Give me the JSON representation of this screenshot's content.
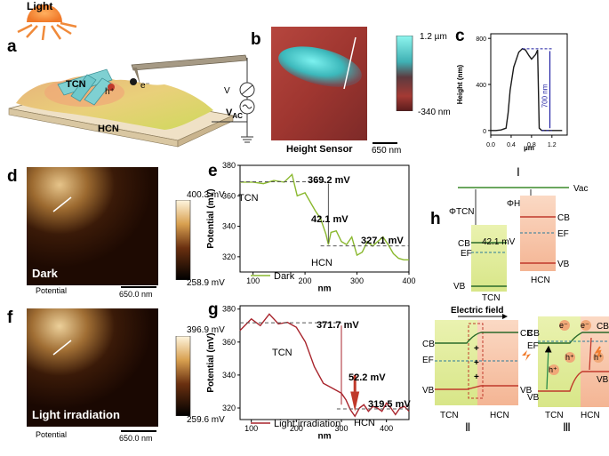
{
  "panels": {
    "a": "a",
    "b": "b",
    "c": "c",
    "d": "d",
    "e": "e",
    "f": "f",
    "g": "g",
    "h": "h"
  },
  "a": {
    "light": "Light",
    "tcn": "TCN",
    "hcn": "HCN",
    "hplus": "h⁺",
    "eminus": "e⁻",
    "vac": "V",
    "vac_sub": "AC"
  },
  "b": {
    "scale_top": "1.2 µm",
    "scale_bottom": "-340 nm",
    "caption": "Height Sensor",
    "scalebar": "650 nm"
  },
  "c": {
    "ylabel": "Height (nm)",
    "xlabel": "µm",
    "annot": "700 nm",
    "colors": {
      "line": "#1a1a1a",
      "annot": "#1f1fa3"
    }
  },
  "d": {
    "top": "400.3 mV",
    "bottom": "258.9 mV",
    "corner": "Dark",
    "caption": "Potential",
    "scalebar": "650.0 nm"
  },
  "f": {
    "top": "396.9 mV",
    "bottom": "259.6 mV",
    "corner": "Light irradiation",
    "caption": "Potential",
    "scalebar": "650.0 nm"
  },
  "e": {
    "tcn": "TCN",
    "hcn": "HCN",
    "v1": "369.2 mV",
    "v2": "327.1 mV",
    "diff": "42.1 mV",
    "legend": "Dark",
    "colors": {
      "line": "#8ab82e"
    }
  },
  "g": {
    "tcn": "TCN",
    "hcn": "HCN",
    "v1": "371.7 mV",
    "v2": "319.5 mV",
    "diff": "52.2 mV",
    "legend": "Light irradiation",
    "colors": {
      "line": "#a8242c"
    }
  },
  "h": {
    "roman1": "Ⅰ",
    "roman2": "Ⅱ",
    "roman3": "Ⅲ",
    "vac": "Vac",
    "phi_tcn": "ΦTCN",
    "phi_hcn": "ΦHCN",
    "cb": "CB",
    "vb": "VB",
    "ef": "EF",
    "tcn": "TCN",
    "hcn": "HCN",
    "diff": "42.1 mV",
    "efield": "Electric field",
    "hplus": "h⁺",
    "eminus": "e⁻",
    "plus": "+"
  },
  "chart_data": [
    {
      "type": "line",
      "panel": "c",
      "xlabel": "µm",
      "ylabel": "Height (nm)",
      "xlim": [
        0,
        1.5
      ],
      "ylim": [
        -40,
        840
      ],
      "xticks": [
        "0.0",
        "0.4",
        "0.8",
        "1.2"
      ],
      "yticks": [
        "0",
        "400",
        "800"
      ],
      "series": [
        {
          "x": [
            0,
            0.1,
            0.2,
            0.3,
            0.34,
            0.38,
            0.45,
            0.55,
            0.62,
            0.68,
            0.75,
            0.8,
            0.88,
            0.92,
            0.95,
            1.0,
            1.1,
            1.2,
            1.3,
            1.4
          ],
          "y": [
            0,
            0,
            5,
            20,
            150,
            350,
            550,
            680,
            710,
            700,
            650,
            620,
            660,
            700,
            20,
            0,
            0,
            0,
            0,
            0
          ]
        }
      ]
    },
    {
      "type": "line",
      "panel": "e",
      "xlabel": "nm",
      "ylabel": "Potential (mV)",
      "xlim": [
        75,
        400
      ],
      "ylim": [
        310,
        380
      ],
      "xticks": [
        "100",
        "200",
        "300",
        "400"
      ],
      "yticks": [
        "320",
        "340",
        "360",
        "380"
      ],
      "series": [
        {
          "name": "Dark",
          "x": [
            75,
            100,
            120,
            140,
            160,
            175,
            185,
            200,
            210,
            220,
            230,
            240,
            245,
            250,
            260,
            270,
            280,
            290,
            300,
            310,
            320,
            330,
            340,
            350,
            360,
            370,
            380,
            390,
            400
          ],
          "y": [
            369,
            369,
            368,
            370,
            369,
            374,
            360,
            362,
            356,
            350,
            345,
            335,
            328,
            336,
            337,
            330,
            328,
            333,
            321,
            323,
            330,
            327,
            330,
            333,
            328,
            322,
            319,
            318,
            318
          ]
        }
      ]
    },
    {
      "type": "line",
      "panel": "g",
      "xlabel": "nm",
      "ylabel": "Potential (mV)",
      "xlim": [
        75,
        450
      ],
      "ylim": [
        313,
        382
      ],
      "xticks": [
        "100",
        "200",
        "300",
        "400"
      ],
      "yticks": [
        "320",
        "340",
        "360",
        "380"
      ],
      "series": [
        {
          "name": "Light irradiation",
          "x": [
            75,
            100,
            120,
            140,
            160,
            180,
            200,
            220,
            240,
            260,
            280,
            300,
            310,
            320,
            330,
            340,
            350,
            360,
            370,
            380,
            390,
            400,
            410,
            420,
            430,
            440,
            450
          ],
          "y": [
            367,
            374,
            370,
            377,
            371,
            372,
            369,
            360,
            345,
            335,
            332,
            329,
            325,
            319,
            315,
            320,
            322,
            318,
            321,
            320,
            318,
            323,
            320,
            316,
            320,
            321,
            318
          ]
        }
      ]
    }
  ]
}
